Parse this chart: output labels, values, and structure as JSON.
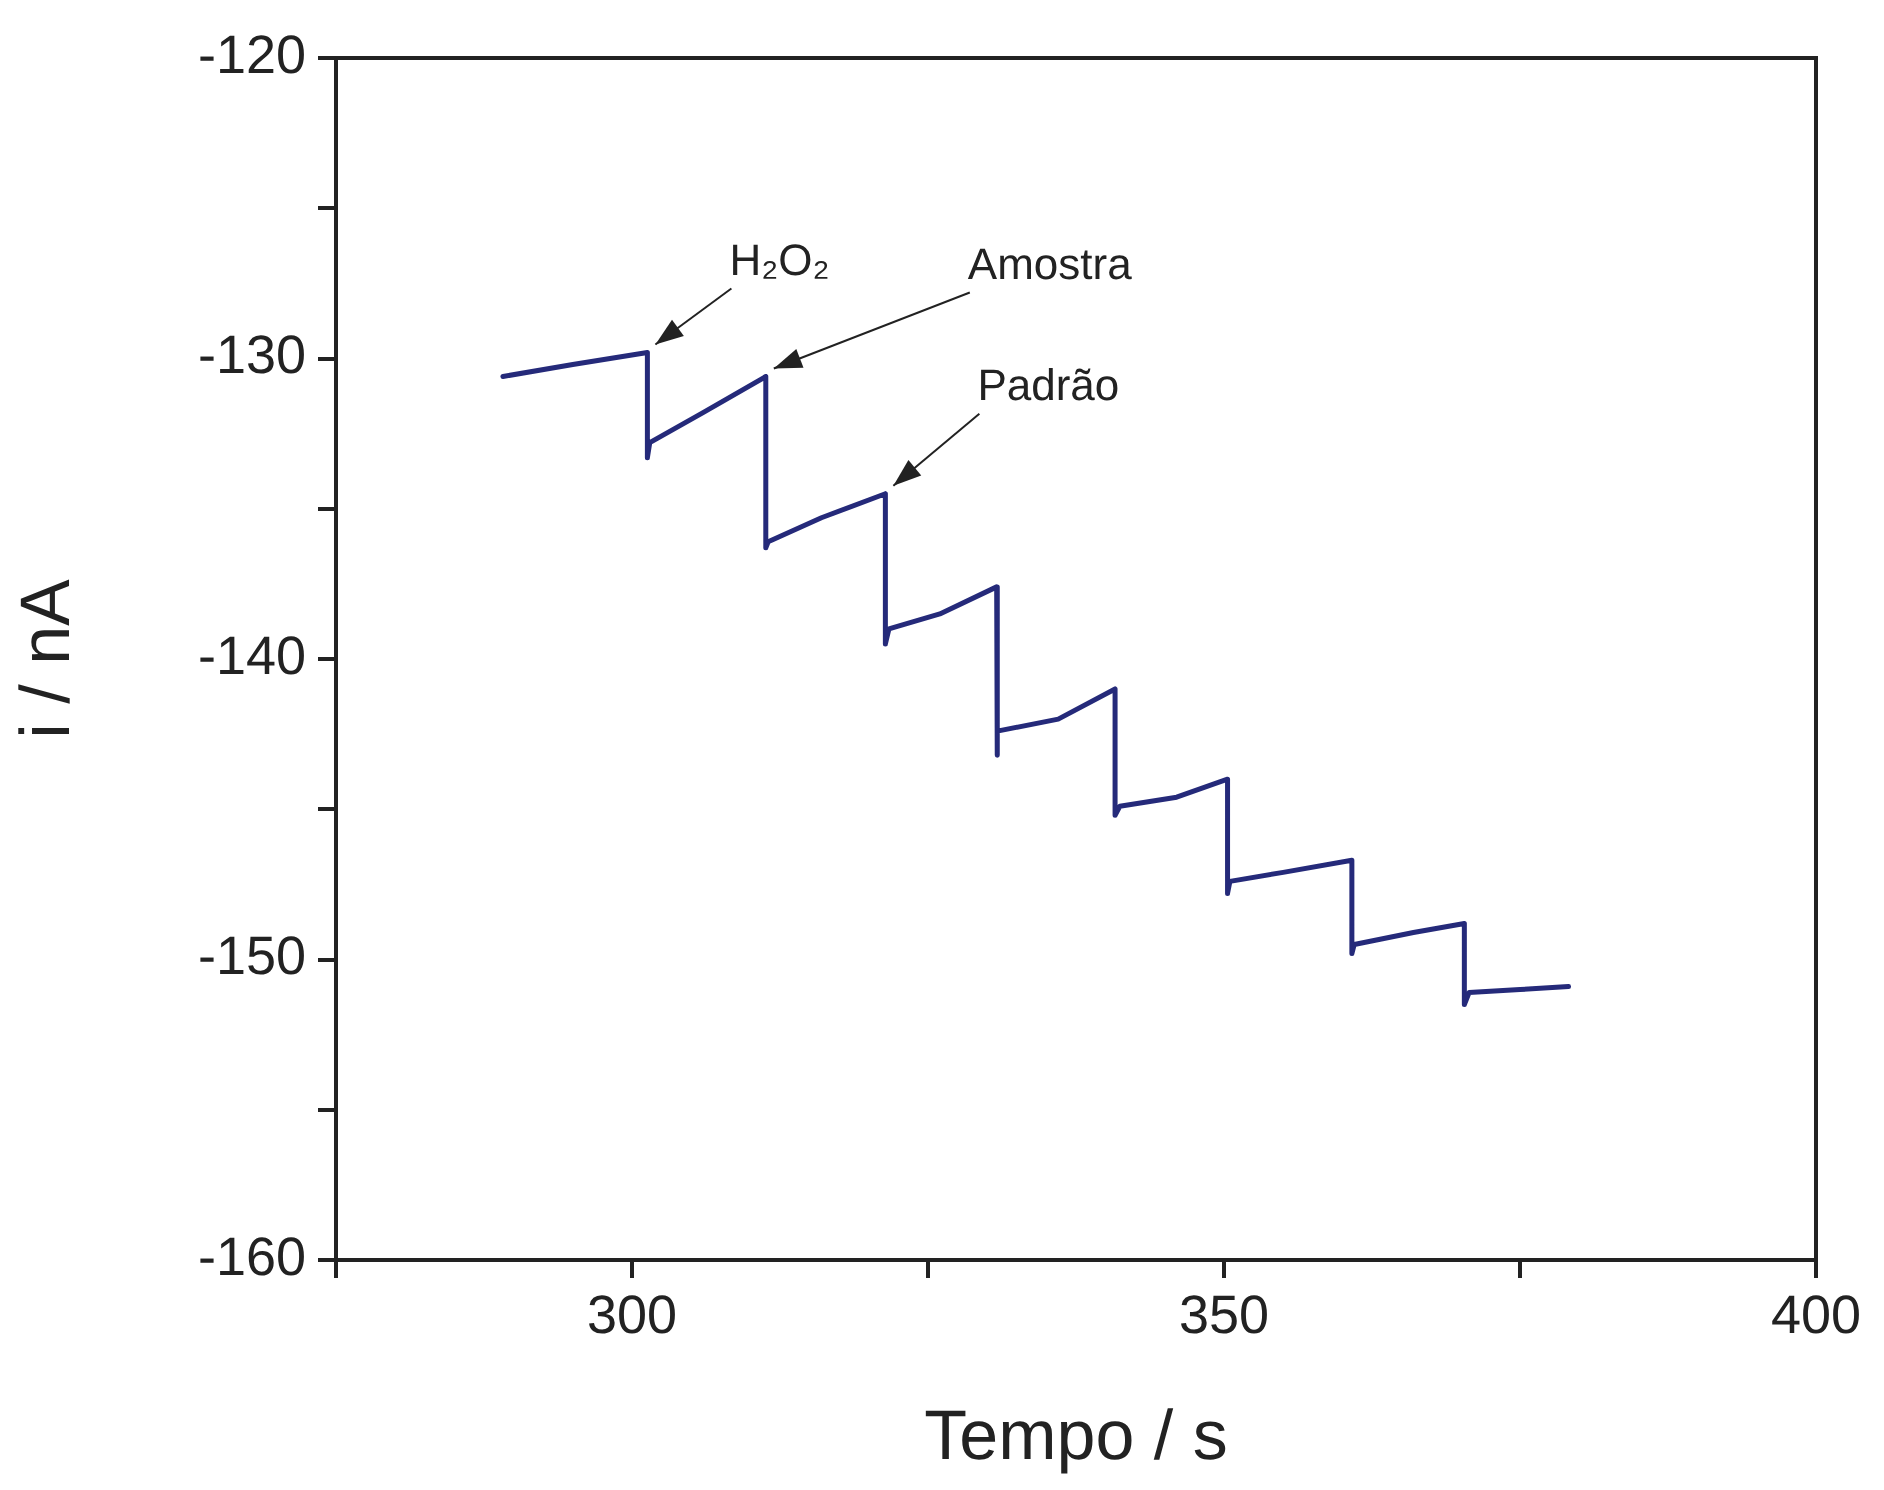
{
  "chart_data": {
    "type": "line",
    "xlabel": "Tempo / s",
    "ylabel": "i / nA",
    "xlim": [
      275,
      400
    ],
    "xticks": [
      {
        "value": 275,
        "label": null
      },
      300,
      {
        "value": 325,
        "label": null
      },
      350,
      {
        "value": 375,
        "label": null
      },
      400
    ],
    "ylim": [
      -160,
      -120
    ],
    "yticks": [
      -160,
      {
        "value": -155,
        "label": null
      },
      -150,
      {
        "value": -145,
        "label": null
      },
      -140,
      {
        "value": -135,
        "label": null
      },
      -130,
      {
        "value": -125,
        "label": null
      },
      -120
    ],
    "grid": false,
    "legend": false,
    "marker": "none",
    "line_style": "solid",
    "series": [
      {
        "color": "#252a7a",
        "x": [
          289.1,
          295,
          301.3,
          301.3,
          301.5,
          306,
          311.3,
          311.3,
          311.5,
          316,
          321.4,
          321.4,
          321.7,
          326,
          330.8,
          330.8,
          330.9,
          336,
          340.8,
          340.8,
          341.2,
          346,
          350.3,
          350.3,
          350.5,
          355,
          360.8,
          360.8,
          361,
          366,
          370.3,
          370.3,
          370.7,
          375,
          379.1
        ],
        "values": [
          -130.6,
          -130.2,
          -129.8,
          -133.3,
          -132.8,
          -131.8,
          -130.6,
          -136.3,
          -136.1,
          -135.3,
          -134.5,
          -139.5,
          -139.0,
          -138.5,
          -137.6,
          -143.2,
          -142.4,
          -142.0,
          -141.0,
          -145.2,
          -144.9,
          -144.6,
          -144.0,
          -147.8,
          -147.4,
          -147.1,
          -146.7,
          -149.8,
          -149.5,
          -149.1,
          -148.8,
          -151.5,
          -151.1,
          -151.0,
          -150.9
        ]
      }
    ],
    "annotations": [
      {
        "text": "H₂O₂",
        "x": 301.3,
        "y": -129.8
      },
      {
        "text": "Amostra",
        "x": 311.3,
        "y": -130.6
      },
      {
        "text": "Padrão",
        "x": 321.4,
        "y": -134.5
      }
    ]
  }
}
